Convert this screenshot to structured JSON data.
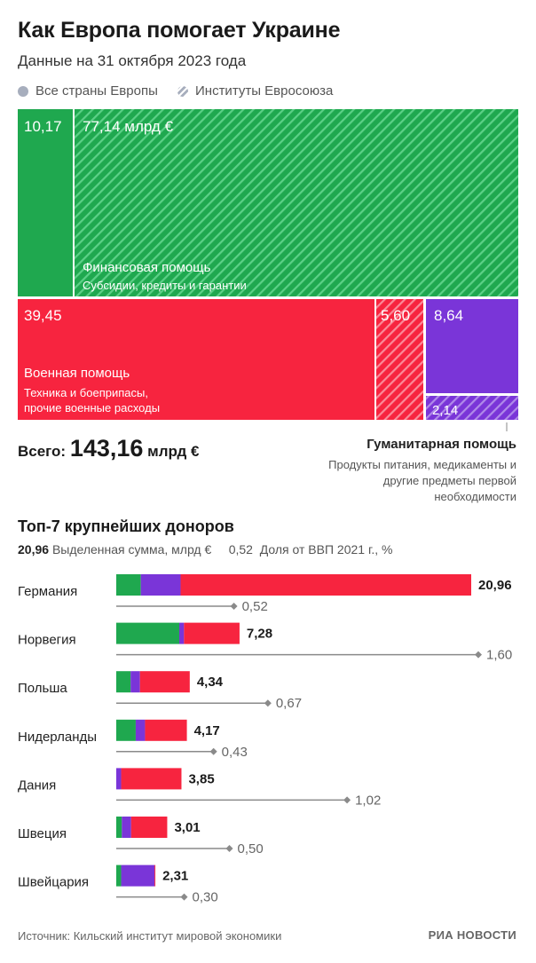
{
  "header": {
    "title": "Как Европа помогает Украине",
    "subtitle": "Данные на 31 октября 2023 года"
  },
  "legend": {
    "all_countries": "Все страны Европы",
    "eu_institutions": "Институты Евросоюза"
  },
  "colors": {
    "financial": "#1fa84f",
    "military": "#f7243f",
    "humanitarian": "#7a35d8",
    "legend_dot": "#a7aebd",
    "line": "#8a8a8a"
  },
  "totals": {
    "label": "Всего:",
    "value": "143,16",
    "unit": "млрд €"
  },
  "humanitarian_note": {
    "title": "Гуманитарная помощь",
    "description": "Продукты питания, медикаменты и другие предметы первой необходимости"
  },
  "donors": {
    "title": "Топ-7 крупнейших доноров",
    "legend_value": "20,96",
    "legend_value_label": "Выделенная сумма, млрд €",
    "legend_gdp": "0,52",
    "legend_gdp_label": "Доля от ВВП 2021 г., %"
  },
  "footer": {
    "source": "Источник: Кильский институт мировой экономики",
    "logo": "РИА НОВОСТИ"
  },
  "chart_data": [
    {
      "type": "treemap",
      "unit": "млрд €",
      "groups": [
        {
          "name": "Финансовая помощь",
          "description": "Субсидии, кредиты и гарантии",
          "color": "#1fa84f",
          "items": [
            {
              "source": "Все страны Европы",
              "value": 10.17,
              "label": "10,17"
            },
            {
              "source": "Институты Евросоюза",
              "value": 77.14,
              "label": "77,14 млрд €"
            }
          ]
        },
        {
          "name": "Военная помощь",
          "description": "Техника и боеприпасы, прочие военные расходы",
          "color": "#f7243f",
          "items": [
            {
              "source": "Все страны Европы",
              "value": 39.45,
              "label": "39,45"
            },
            {
              "source": "Институты Евросоюза",
              "value": 5.6,
              "label": "5,60"
            }
          ]
        },
        {
          "name": "Гуманитарная помощь",
          "color": "#7a35d8",
          "items": [
            {
              "source": "Все страны Европы",
              "value": 8.64,
              "label": "8,64"
            },
            {
              "source": "Институты Евросоюза",
              "value": 2.14,
              "label": "2,14"
            }
          ]
        }
      ],
      "total": 143.16
    },
    {
      "type": "bar",
      "stacked": true,
      "unit": "млрд €",
      "categories": [
        "Германия",
        "Норвегия",
        "Польша",
        "Нидерланды",
        "Дания",
        "Швеция",
        "Швейцария"
      ],
      "totals": [
        20.96,
        7.28,
        4.34,
        4.17,
        3.85,
        3.01,
        2.31
      ],
      "total_labels": [
        "20,96",
        "7,28",
        "4,34",
        "4,17",
        "3,85",
        "3,01",
        "2,31"
      ],
      "series": [
        {
          "color": "#1fa84f",
          "values": [
            1.45,
            3.72,
            0.85,
            1.15,
            0.0,
            0.33,
            0.29
          ]
        },
        {
          "color": "#7a35d8",
          "values": [
            2.35,
            0.28,
            0.55,
            0.55,
            0.29,
            0.55,
            1.97
          ]
        },
        {
          "color": "#f7243f",
          "values": [
            17.16,
            3.28,
            2.94,
            2.47,
            3.56,
            2.13,
            0.05
          ]
        }
      ],
      "gdp_share": {
        "label": "Доля от ВВП 2021 г., %",
        "values": [
          0.52,
          1.6,
          0.67,
          0.43,
          1.02,
          0.5,
          0.3
        ],
        "labels": [
          "0,52",
          "1,60",
          "0,67",
          "0,43",
          "1,02",
          "0,50",
          "0,30"
        ]
      }
    }
  ]
}
